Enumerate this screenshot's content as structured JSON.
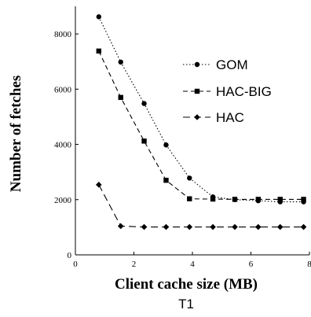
{
  "chart_data": {
    "type": "line",
    "xlabel": "Client cache size (MB)",
    "ylabel": "Number of fetches",
    "caption": "T1",
    "xlim": [
      0,
      8
    ],
    "ylim": [
      0,
      9000
    ],
    "xticks": [
      0,
      2,
      4,
      6,
      8
    ],
    "yticks": [
      0,
      2000,
      4000,
      6000,
      8000
    ],
    "legend_position": "right",
    "x": [
      0.8,
      1.55,
      2.35,
      3.1,
      3.9,
      4.7,
      5.45,
      6.25,
      7.0,
      7.8
    ],
    "series": [
      {
        "name": "GOM",
        "marker": "circle",
        "dash": "dotted",
        "values": [
          8620,
          6980,
          5480,
          3980,
          2780,
          2100,
          2000,
          1960,
          1920,
          1920
        ]
      },
      {
        "name": "HAC-BIG",
        "marker": "square",
        "dash": "dashed",
        "values": [
          7380,
          5700,
          4120,
          2700,
          2030,
          2020,
          2010,
          2010,
          2010,
          2010
        ]
      },
      {
        "name": "HAC",
        "marker": "diamond",
        "dash": "longdash",
        "values": [
          2540,
          1040,
          1010,
          1010,
          1010,
          1010,
          1010,
          1010,
          1010,
          1010
        ]
      }
    ]
  }
}
